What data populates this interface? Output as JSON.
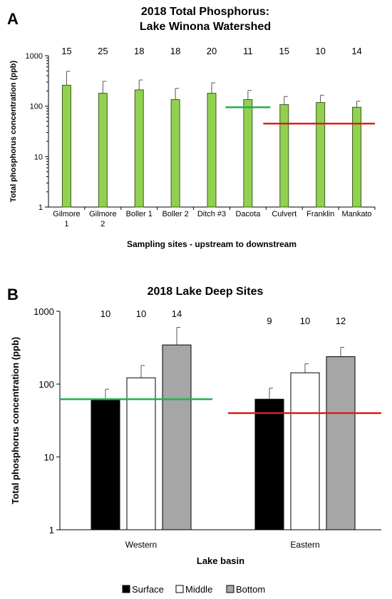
{
  "panels": [
    {
      "letter": "A",
      "title": [
        "2018 Total Phosphorus:",
        "Lake Winona Watershed"
      ]
    },
    {
      "letter": "B",
      "title": [
        "2018 Lake Deep Sites"
      ]
    }
  ],
  "colors": {
    "bar_green": "#92d050",
    "bar_green_edge": "#3b5e1e",
    "standard_green": "#22b14c",
    "standard_red": "#e11b1b",
    "surface": "#000000",
    "middle": "#ffffff",
    "bottom": "#a6a6a6"
  },
  "chart_data": [
    {
      "type": "bar",
      "title": "2018 Total Phosphorus: Lake Winona Watershed",
      "xlabel": "Sampling sites - upstream to downstream",
      "ylabel": "Total phosphorus concentration (ppb)",
      "yscale": "log",
      "ylim": [
        1,
        1000
      ],
      "yticks": [
        "1",
        "10",
        "100",
        "1000"
      ],
      "categories": [
        [
          "Gilmore",
          "1"
        ],
        [
          "Gilmore",
          "2"
        ],
        [
          "Boller 1"
        ],
        [
          "Boller 2"
        ],
        [
          "Ditch #3"
        ],
        [
          "Dacota"
        ],
        [
          "Culvert"
        ],
        [
          "Franklin"
        ],
        [
          "Mankato"
        ]
      ],
      "values": [
        260,
        180,
        210,
        135,
        180,
        135,
        107,
        118,
        95
      ],
      "error_upper": [
        490,
        310,
        330,
        225,
        290,
        205,
        155,
        165,
        125
      ],
      "sample_counts": [
        "15",
        "25",
        "18",
        "18",
        "20",
        "11",
        "15",
        "10",
        "14"
      ],
      "reference_lines": [
        {
          "value": 95,
          "color": "green",
          "from_category": 5,
          "to_category": 5
        },
        {
          "value": 45,
          "color": "red",
          "from_category": 6,
          "to_category": 8
        }
      ],
      "grid": false,
      "legend": "none"
    },
    {
      "type": "bar",
      "title": "2018 Lake Deep Sites",
      "xlabel": "Lake basin",
      "ylabel": "Total phosphorus concentration (ppb)",
      "yscale": "log",
      "ylim": [
        1,
        1000
      ],
      "yticks": [
        "1",
        "10",
        "100",
        "1000"
      ],
      "categories": [
        "Western",
        "Eastern"
      ],
      "series": [
        {
          "name": "Surface",
          "values": [
            60,
            62
          ],
          "error_upper": [
            85,
            88
          ],
          "counts": [
            "10",
            "9"
          ]
        },
        {
          "name": "Middle",
          "values": [
            122,
            143
          ],
          "error_upper": [
            180,
            190
          ],
          "counts": [
            "10",
            "10"
          ]
        },
        {
          "name": "Bottom",
          "values": [
            345,
            238
          ],
          "error_upper": [
            600,
            320
          ],
          "counts": [
            "14",
            "12"
          ]
        }
      ],
      "reference_lines": [
        {
          "value": 62,
          "color": "green",
          "category": "Western"
        },
        {
          "value": 40,
          "color": "red",
          "category": "Eastern"
        }
      ],
      "grid": false,
      "legend": "bottom"
    }
  ]
}
